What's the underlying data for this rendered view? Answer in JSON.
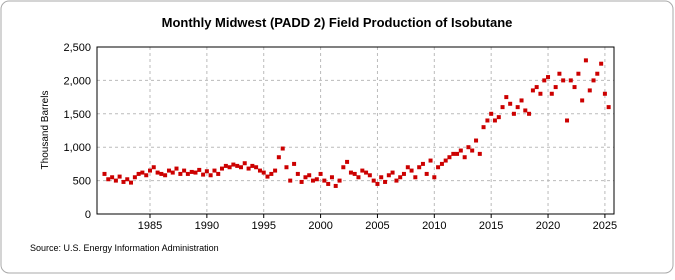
{
  "chart_data": {
    "type": "scatter",
    "title": "Monthly Midwest (PADD 2) Field Production of Isobutane",
    "y_label": "Thousand Barrels",
    "source": "Source: U.S. Energy Information Administration",
    "color": "#cc0000",
    "grid": true,
    "xlim": [
      1980.34,
      2025.8
    ],
    "xticks": [
      1985,
      1990,
      1995,
      2000,
      2005,
      2010,
      2015,
      2020,
      2025
    ],
    "ylim": [
      0,
      2500
    ],
    "yticks": [
      0,
      500,
      {
        "value": 1000,
        "label": "1,000"
      },
      {
        "value": 1500,
        "label": "1,500"
      },
      {
        "value": 2000,
        "label": "2,000"
      },
      {
        "value": 2500,
        "label": "2,500"
      }
    ],
    "x": [
      1981,
      1981.33,
      1981.67,
      1982,
      1982.33,
      1982.67,
      1983,
      1983.33,
      1983.67,
      1984,
      1984.33,
      1984.67,
      1985,
      1985.33,
      1985.67,
      1986,
      1986.33,
      1986.67,
      1987,
      1987.33,
      1987.67,
      1988,
      1988.33,
      1988.67,
      1989,
      1989.33,
      1989.67,
      1990,
      1990.33,
      1990.67,
      1991,
      1991.33,
      1991.67,
      1992,
      1992.33,
      1992.67,
      1993,
      1993.33,
      1993.67,
      1994,
      1994.33,
      1994.67,
      1995,
      1995.33,
      1995.67,
      1996,
      1996.33,
      1996.67,
      1997,
      1997.33,
      1997.67,
      1998,
      1998.33,
      1998.67,
      1999,
      1999.33,
      1999.67,
      2000,
      2000.33,
      2000.67,
      2001,
      2001.33,
      2001.67,
      2002,
      2002.33,
      2002.67,
      2003,
      2003.33,
      2003.67,
      2004,
      2004.33,
      2004.67,
      2005,
      2005.33,
      2005.67,
      2006,
      2006.33,
      2006.67,
      2007,
      2007.33,
      2007.67,
      2008,
      2008.33,
      2008.67,
      2009,
      2009.33,
      2009.67,
      2010,
      2010.33,
      2010.67,
      2011,
      2011.33,
      2011.67,
      2012,
      2012.33,
      2012.67,
      2013,
      2013.33,
      2013.67,
      2014,
      2014.33,
      2014.67,
      2015,
      2015.33,
      2015.67,
      2016,
      2016.33,
      2016.67,
      2017,
      2017.33,
      2017.67,
      2018,
      2018.33,
      2018.67,
      2019,
      2019.33,
      2019.67,
      2020,
      2020.33,
      2020.67,
      2021,
      2021.33,
      2021.67,
      2022,
      2022.33,
      2022.67,
      2023,
      2023.33,
      2023.67,
      2024,
      2024.33,
      2024.67,
      2025,
      2025.33
    ],
    "values": [
      600,
      520,
      550,
      500,
      560,
      480,
      520,
      470,
      550,
      600,
      620,
      580,
      650,
      700,
      620,
      600,
      580,
      650,
      620,
      680,
      600,
      650,
      600,
      630,
      620,
      660,
      590,
      640,
      580,
      650,
      600,
      680,
      720,
      700,
      740,
      720,
      700,
      760,
      680,
      720,
      700,
      650,
      620,
      560,
      600,
      650,
      850,
      980,
      700,
      500,
      750,
      600,
      480,
      550,
      580,
      500,
      520,
      600,
      500,
      450,
      550,
      420,
      500,
      700,
      780,
      620,
      600,
      550,
      650,
      620,
      580,
      500,
      450,
      550,
      480,
      580,
      620,
      500,
      550,
      600,
      700,
      650,
      550,
      700,
      750,
      600,
      800,
      550,
      700,
      750,
      800,
      850,
      900,
      900,
      950,
      850,
      1000,
      950,
      1100,
      900,
      1300,
      1400,
      1500,
      1400,
      1450,
      1600,
      1750,
      1650,
      1500,
      1600,
      1700,
      1550,
      1500,
      1850,
      1900,
      1800,
      2000,
      2050,
      1800,
      1900,
      2100,
      2000,
      1400,
      2000,
      1900,
      2100,
      1700,
      2300,
      1850,
      2000,
      2100,
      2250,
      1800,
      1600
    ]
  }
}
